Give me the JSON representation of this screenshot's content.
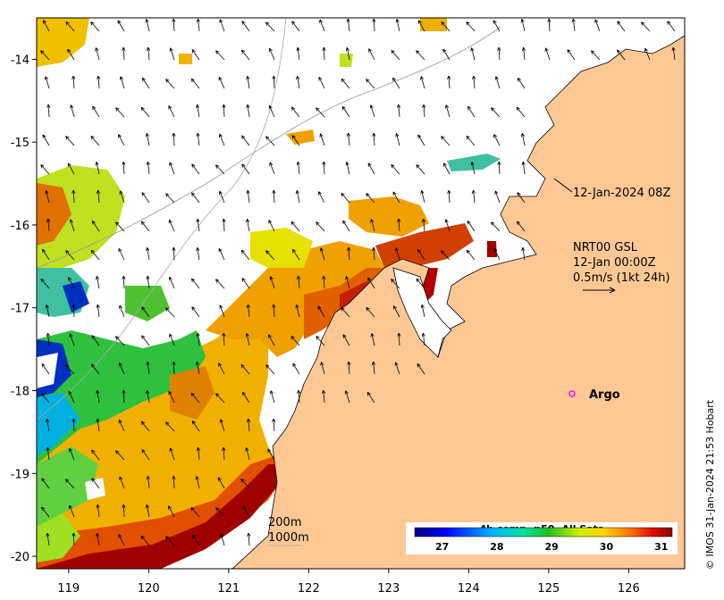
{
  "map": {
    "lon_ticks": [
      "119",
      "120",
      "121",
      "122",
      "123",
      "124",
      "125",
      "126"
    ],
    "lat_ticks": [
      "-14",
      "-15",
      "-16",
      "-17",
      "-18",
      "-19",
      "-20"
    ],
    "lon_range": [
      118.6,
      126.7
    ],
    "lat_range": [
      -20.15,
      -13.5
    ]
  },
  "annotations": {
    "time_label": "12-Jan-2024 08Z",
    "product_line1": "NRT00 GSL",
    "product_line2": "12-Jan 00:00Z",
    "product_line3": "0.5m/s (1kt 24h)",
    "argo_label": "Argo",
    "contour_200": "200m",
    "contour_1000": "1000m"
  },
  "colorbar": {
    "title": "4h comp, p50, All Sats",
    "ticks": [
      "27",
      "28",
      "29",
      "30",
      "31"
    ],
    "range": [
      26.5,
      31.2
    ]
  },
  "credit": "© IMOS 31-Jan-2024 21:53 Hobart",
  "colors": {
    "land": "#fec895",
    "arrow": "#000000",
    "argo_marker": "#ff00ff",
    "sst_high": "#a00000"
  }
}
